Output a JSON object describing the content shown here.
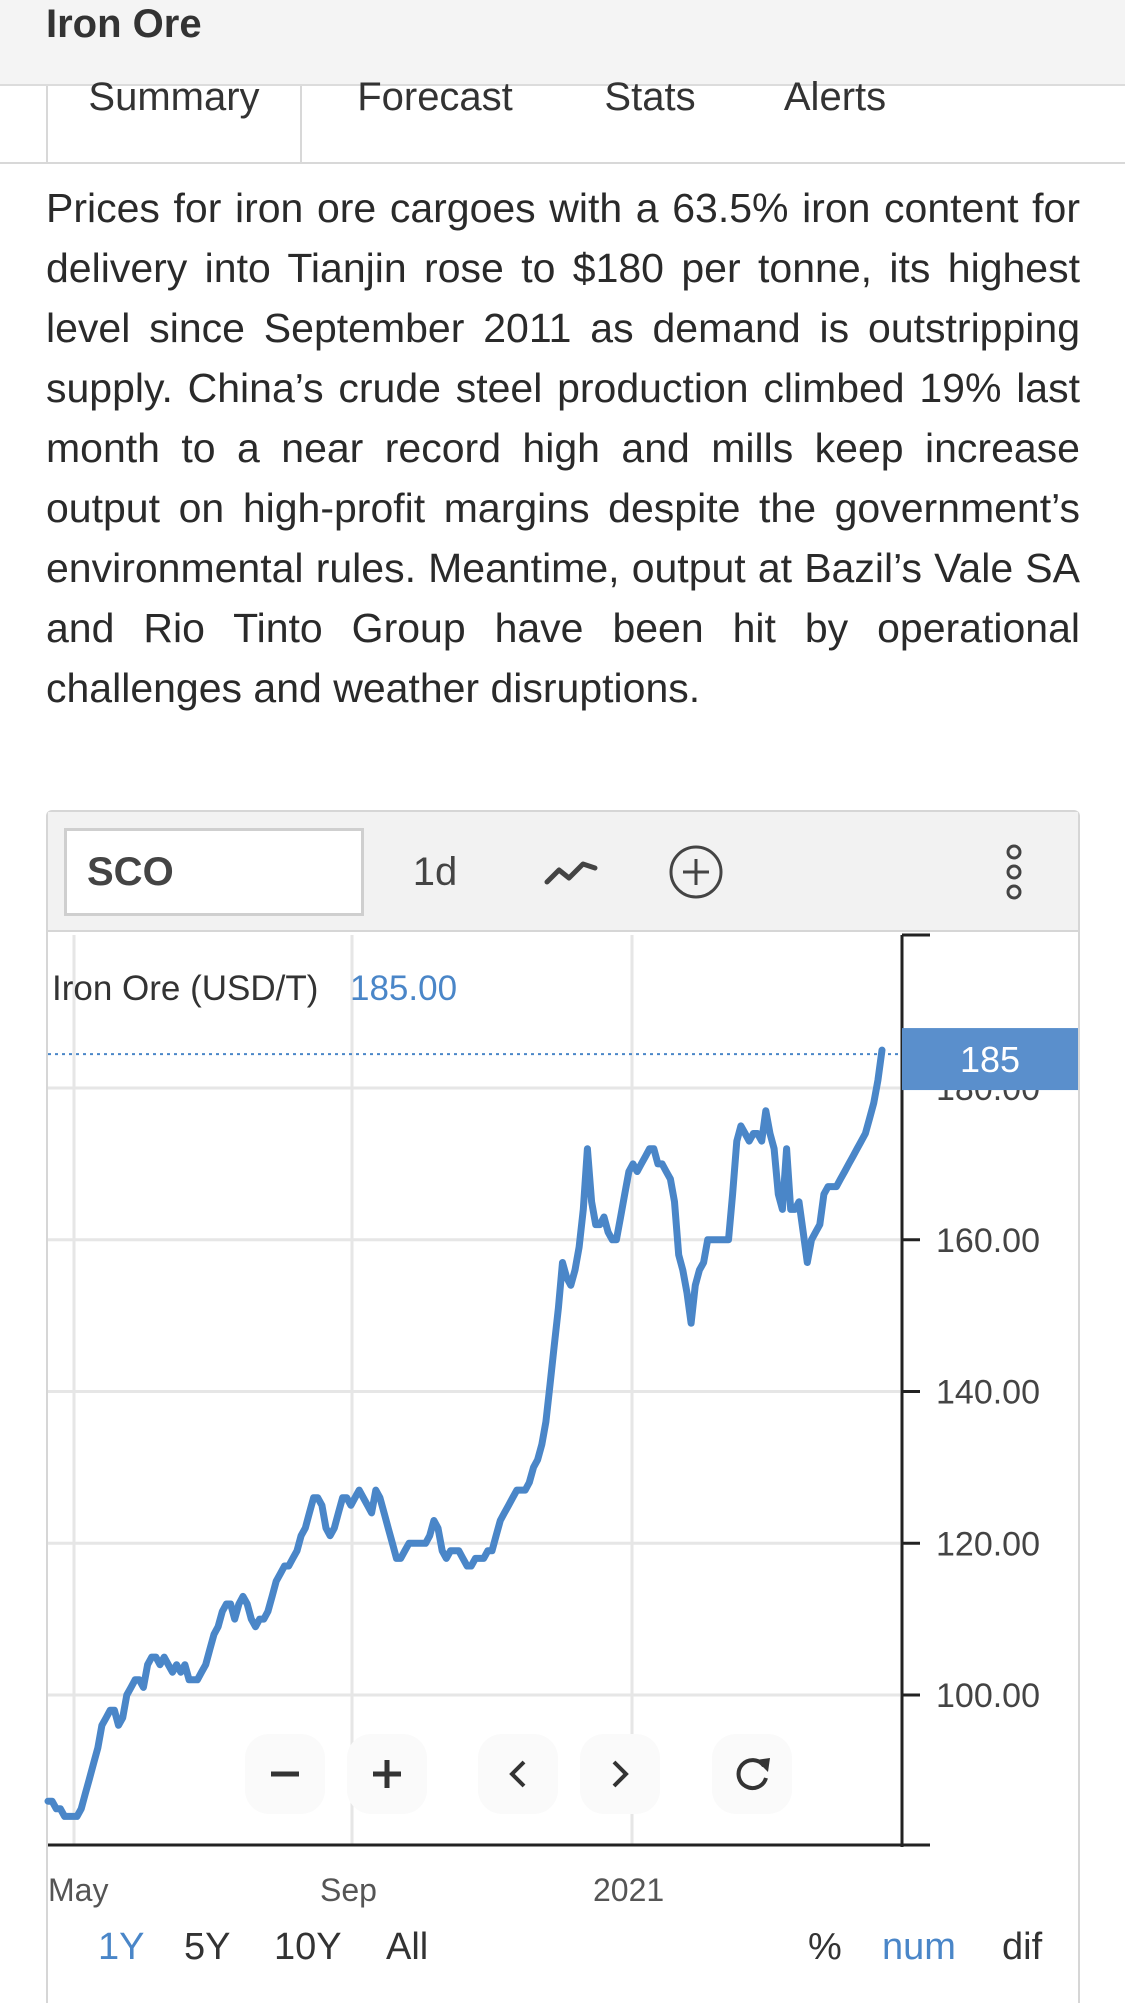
{
  "header": {
    "title": "Iron Ore"
  },
  "tabs": [
    {
      "label": "Summary"
    },
    {
      "label": "Forecast"
    },
    {
      "label": "Stats"
    },
    {
      "label": "Alerts"
    }
  ],
  "description": "Prices for iron ore cargoes with a 63.5% iron content for delivery into Tianjin rose to $180 per tonne, its highest level since September 2011 as demand is outstripping supply. China’s crude steel production climbed 19% last month to a near record high and mills keep increase output on high-profit margins despite the government’s environmental rules. Meantime, output at Bazil’s Vale SA and Rio Tinto Group have been hit by operational challenges and weather disruptions.",
  "toolbar": {
    "symbol_value": "SCO",
    "interval_label": "1d",
    "icons": [
      "line-chart-icon",
      "add-indicator-icon",
      "more-vertical-icon"
    ]
  },
  "chart_legend": {
    "name": "Iron Ore (USD/T)",
    "value": "185.00"
  },
  "price_tag": "185",
  "colors": {
    "line": "#4a86c8",
    "tag_bg": "#5a8fcc",
    "active": "#4a86c8"
  },
  "chart_data": {
    "type": "line",
    "series": [
      {
        "name": "Iron Ore (USD/T)",
        "values": [
          86,
          86,
          85,
          85,
          84,
          84,
          84,
          84,
          85,
          87,
          89,
          91,
          93,
          96,
          97,
          98,
          98,
          96,
          97,
          100,
          101,
          102,
          102,
          101,
          104,
          105,
          105,
          104,
          105,
          104,
          103,
          104,
          103,
          104,
          102,
          102,
          102,
          103,
          104,
          106,
          108,
          109,
          111,
          112,
          112,
          110,
          112,
          113,
          112,
          110,
          109,
          110,
          110,
          111,
          113,
          115,
          116,
          117,
          117,
          118,
          119,
          121,
          122,
          124,
          126,
          126,
          125,
          122,
          121,
          122,
          124,
          126,
          126,
          125,
          126,
          127,
          126,
          125,
          124,
          127,
          126,
          124,
          122,
          120,
          118,
          118,
          119,
          120,
          120,
          120,
          120,
          120,
          121,
          123,
          122,
          119,
          118,
          119,
          119,
          119,
          118,
          117,
          117,
          118,
          118,
          118,
          119,
          119,
          121,
          123,
          124,
          125,
          126,
          127,
          127,
          127,
          128,
          130,
          131,
          133,
          136,
          141,
          146,
          151,
          157,
          155,
          154,
          156,
          159,
          164,
          172,
          165,
          162,
          162,
          163,
          161,
          160,
          160,
          163,
          166,
          169,
          170,
          169,
          170,
          171,
          172,
          172,
          170,
          170,
          169,
          168,
          165,
          158,
          156,
          153,
          149,
          154,
          156,
          157,
          160,
          160,
          160,
          160,
          160,
          160,
          166,
          173,
          175,
          174,
          173,
          174,
          174,
          173,
          177,
          174,
          172,
          166,
          164,
          172,
          164,
          164,
          165,
          161,
          157,
          160,
          161,
          162,
          166,
          167,
          167,
          167,
          168,
          169,
          170,
          171,
          172,
          173,
          174,
          176,
          178,
          181,
          185
        ]
      }
    ],
    "x_ticks": [
      "May",
      "Sep",
      "2021"
    ],
    "y_ticks": [
      "100.00",
      "120.00",
      "140.00",
      "160.00",
      "180.00"
    ],
    "ylim": [
      80,
      200
    ],
    "last_value": 185,
    "range_buttons": [
      "1Y",
      "5Y",
      "10Y",
      "All"
    ],
    "range_selected": "1Y",
    "mode_buttons": [
      "%",
      "num",
      "dif"
    ],
    "mode_selected": "num"
  },
  "zoom_controls": [
    "zoom-out",
    "zoom-in",
    "pan-left",
    "pan-right",
    "reset"
  ]
}
